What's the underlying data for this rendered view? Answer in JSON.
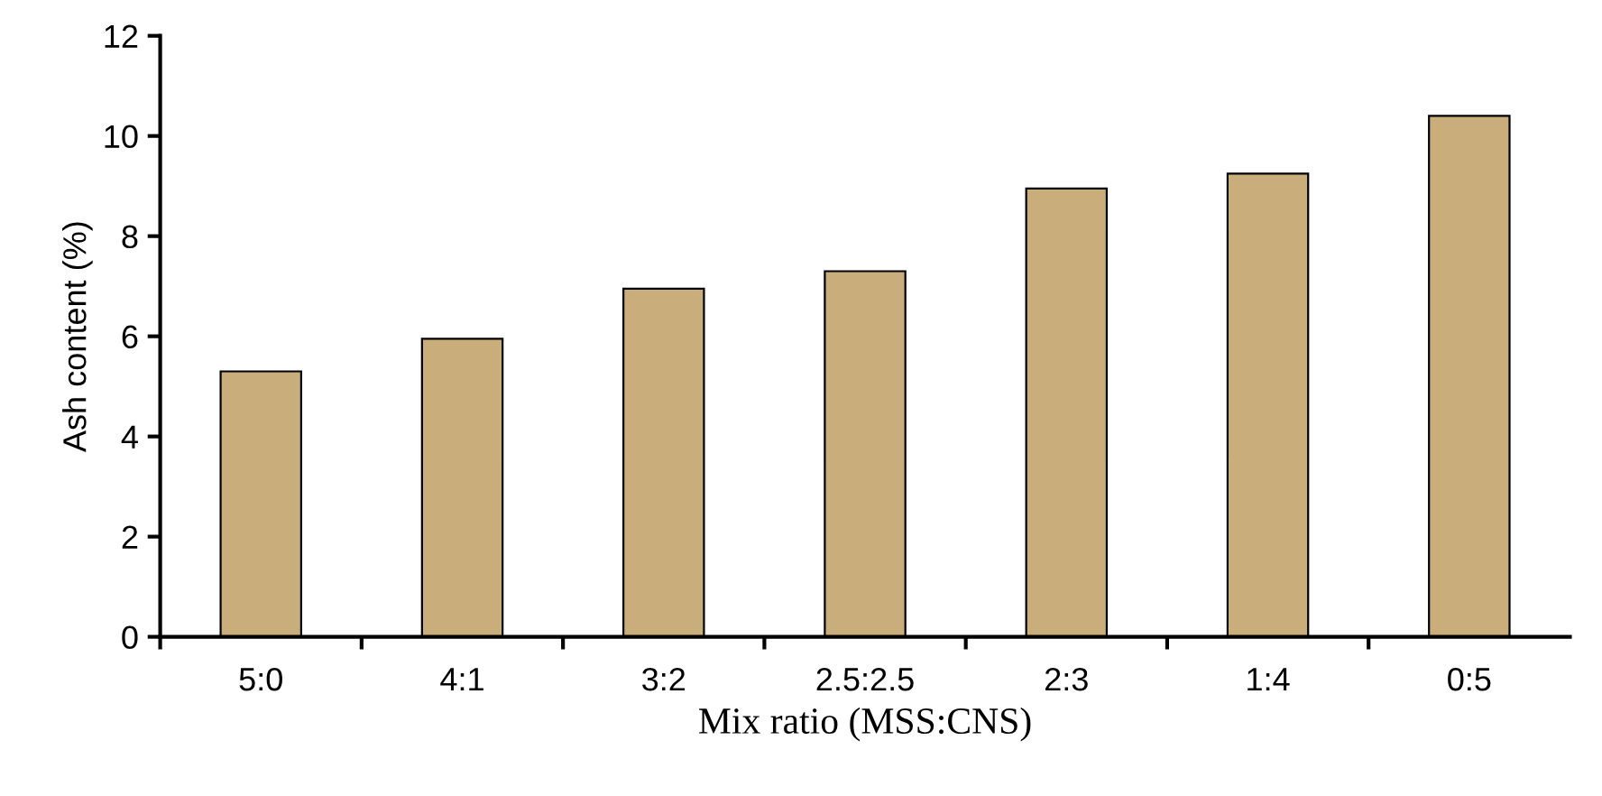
{
  "chart_data": {
    "type": "bar",
    "xlabel": "Mix ratio (MSS:CNS)",
    "ylabel": "Ash content (%)",
    "categories": [
      "5:0",
      "4:1",
      "3:2",
      "2.5:2.5",
      "2:3",
      "1:4",
      "0:5"
    ],
    "values": [
      5.3,
      5.95,
      6.95,
      7.3,
      8.95,
      9.25,
      10.4
    ],
    "color": "#c9ad7a",
    "ylim": [
      0,
      12
    ],
    "yticks": [
      0,
      2,
      4,
      6,
      8,
      10,
      12
    ],
    "grid": false
  }
}
